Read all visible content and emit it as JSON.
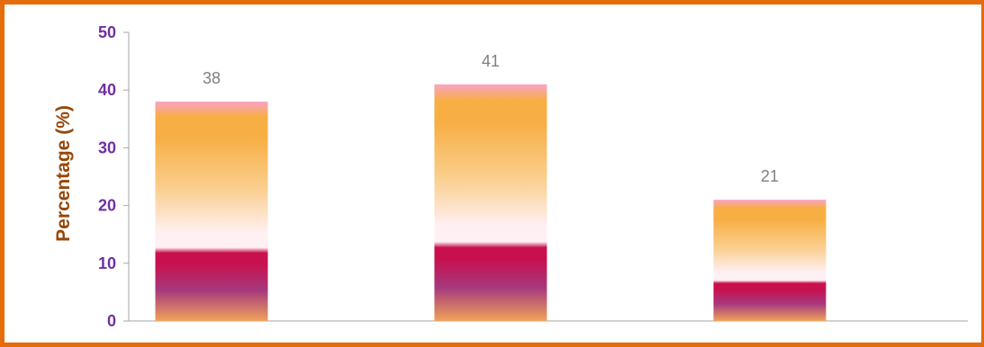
{
  "chart_data": {
    "type": "bar",
    "title": "",
    "xlabel": "",
    "ylabel": "Percentage (%)",
    "categories": [
      "",
      "",
      ""
    ],
    "values": [
      38,
      41,
      21
    ],
    "data_labels": [
      "38",
      "41",
      "21"
    ],
    "ylim": [
      0,
      50
    ],
    "y_ticks": [
      0,
      10,
      20,
      30,
      40,
      50
    ],
    "grid": false,
    "legend": "none",
    "colors": {
      "border": "#E46C0A",
      "tick_label": "#7030A0",
      "axis_title": "#974706",
      "data_label": "#7F7F7F",
      "axis_line": "#A6A6A6",
      "bar_top": "#F9A3C6",
      "bar_orange": "#F7AE43",
      "bar_light": "#FFF0F3",
      "bar_magenta": "#C8104F",
      "bar_purple": "#A6397D",
      "bar_bottom": "#F0A35A"
    }
  }
}
